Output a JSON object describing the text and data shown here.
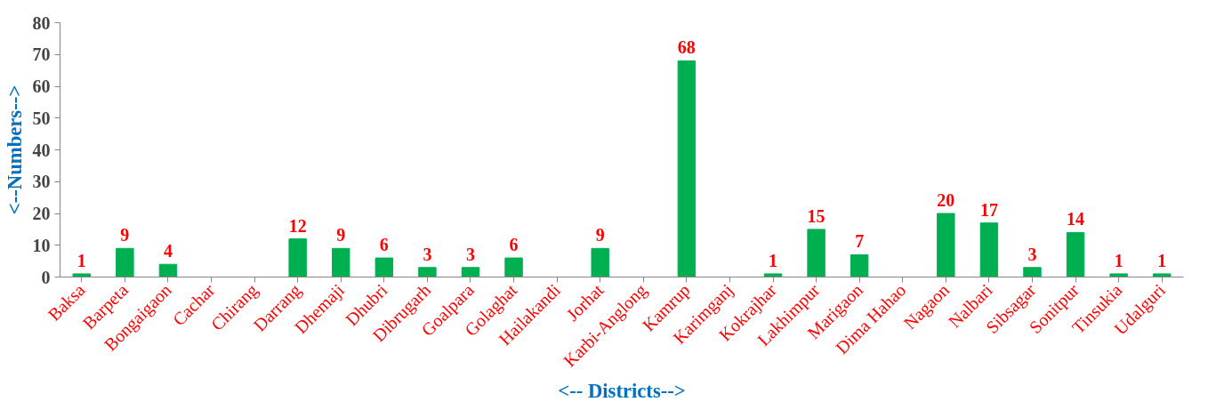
{
  "chart_data": {
    "type": "bar",
    "xlabel": "<-- Districts-->",
    "ylabel": "<--Numbers-->",
    "categories": [
      "Baksa",
      "Barpeta",
      "Bongaigaon",
      "Cachar",
      "Chirang",
      "Darrang",
      "Dhemaji",
      "Dhubri",
      "Dibrugarh",
      "Goalpara",
      "Golaghat",
      "Hailakandi",
      "Jorhat",
      "Karbi-Anglong",
      "Kamrup",
      "Karimganj",
      "Kokrajhar",
      "Lakhimpur",
      "Marigaon",
      "Dima Hahao",
      "Nagaon",
      "Nalbari",
      "Sibsagar",
      "Sonitpur",
      "Tinsukia",
      "Udalguri"
    ],
    "values": [
      1,
      9,
      4,
      0,
      0,
      12,
      9,
      6,
      3,
      3,
      6,
      0,
      9,
      0,
      68,
      0,
      1,
      15,
      7,
      0,
      20,
      17,
      3,
      14,
      1,
      1
    ],
    "value_labels": [
      "1",
      "9",
      "4",
      null,
      null,
      "12",
      "9",
      "6",
      "3",
      "3",
      "6",
      null,
      "9",
      null,
      "68",
      null,
      "1",
      "15",
      "7",
      null,
      "20",
      "17",
      "3",
      "14",
      "1",
      "1"
    ],
    "color": "#00b050",
    "ylim": [
      0,
      80
    ],
    "yticks": [
      0,
      10,
      20,
      30,
      40,
      50,
      60,
      70,
      80
    ],
    "grid": false
  }
}
